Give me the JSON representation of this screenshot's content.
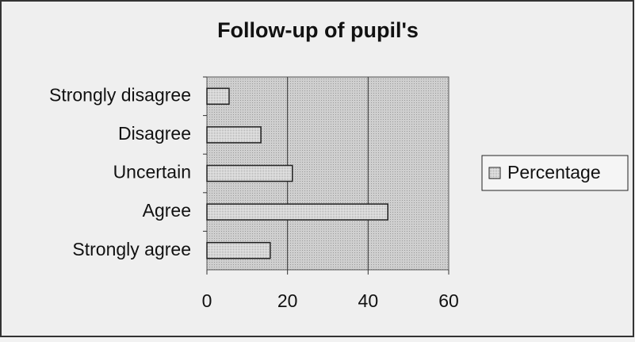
{
  "chart_data": {
    "type": "bar",
    "orientation": "horizontal",
    "title": "Follow-up of pupil's",
    "categories": [
      "Strongly disagree",
      "Disagree",
      "Uncertain",
      "Agree",
      "Strongly agree"
    ],
    "series": [
      {
        "name": "Percentage",
        "color": "#dcdcdc",
        "values": [
          5.5,
          13.4,
          21.2,
          44.9,
          15.7
        ]
      }
    ],
    "xlim": [
      0,
      60
    ],
    "xticks": [
      0,
      20,
      40,
      60
    ],
    "grid": true,
    "legend": "right"
  }
}
